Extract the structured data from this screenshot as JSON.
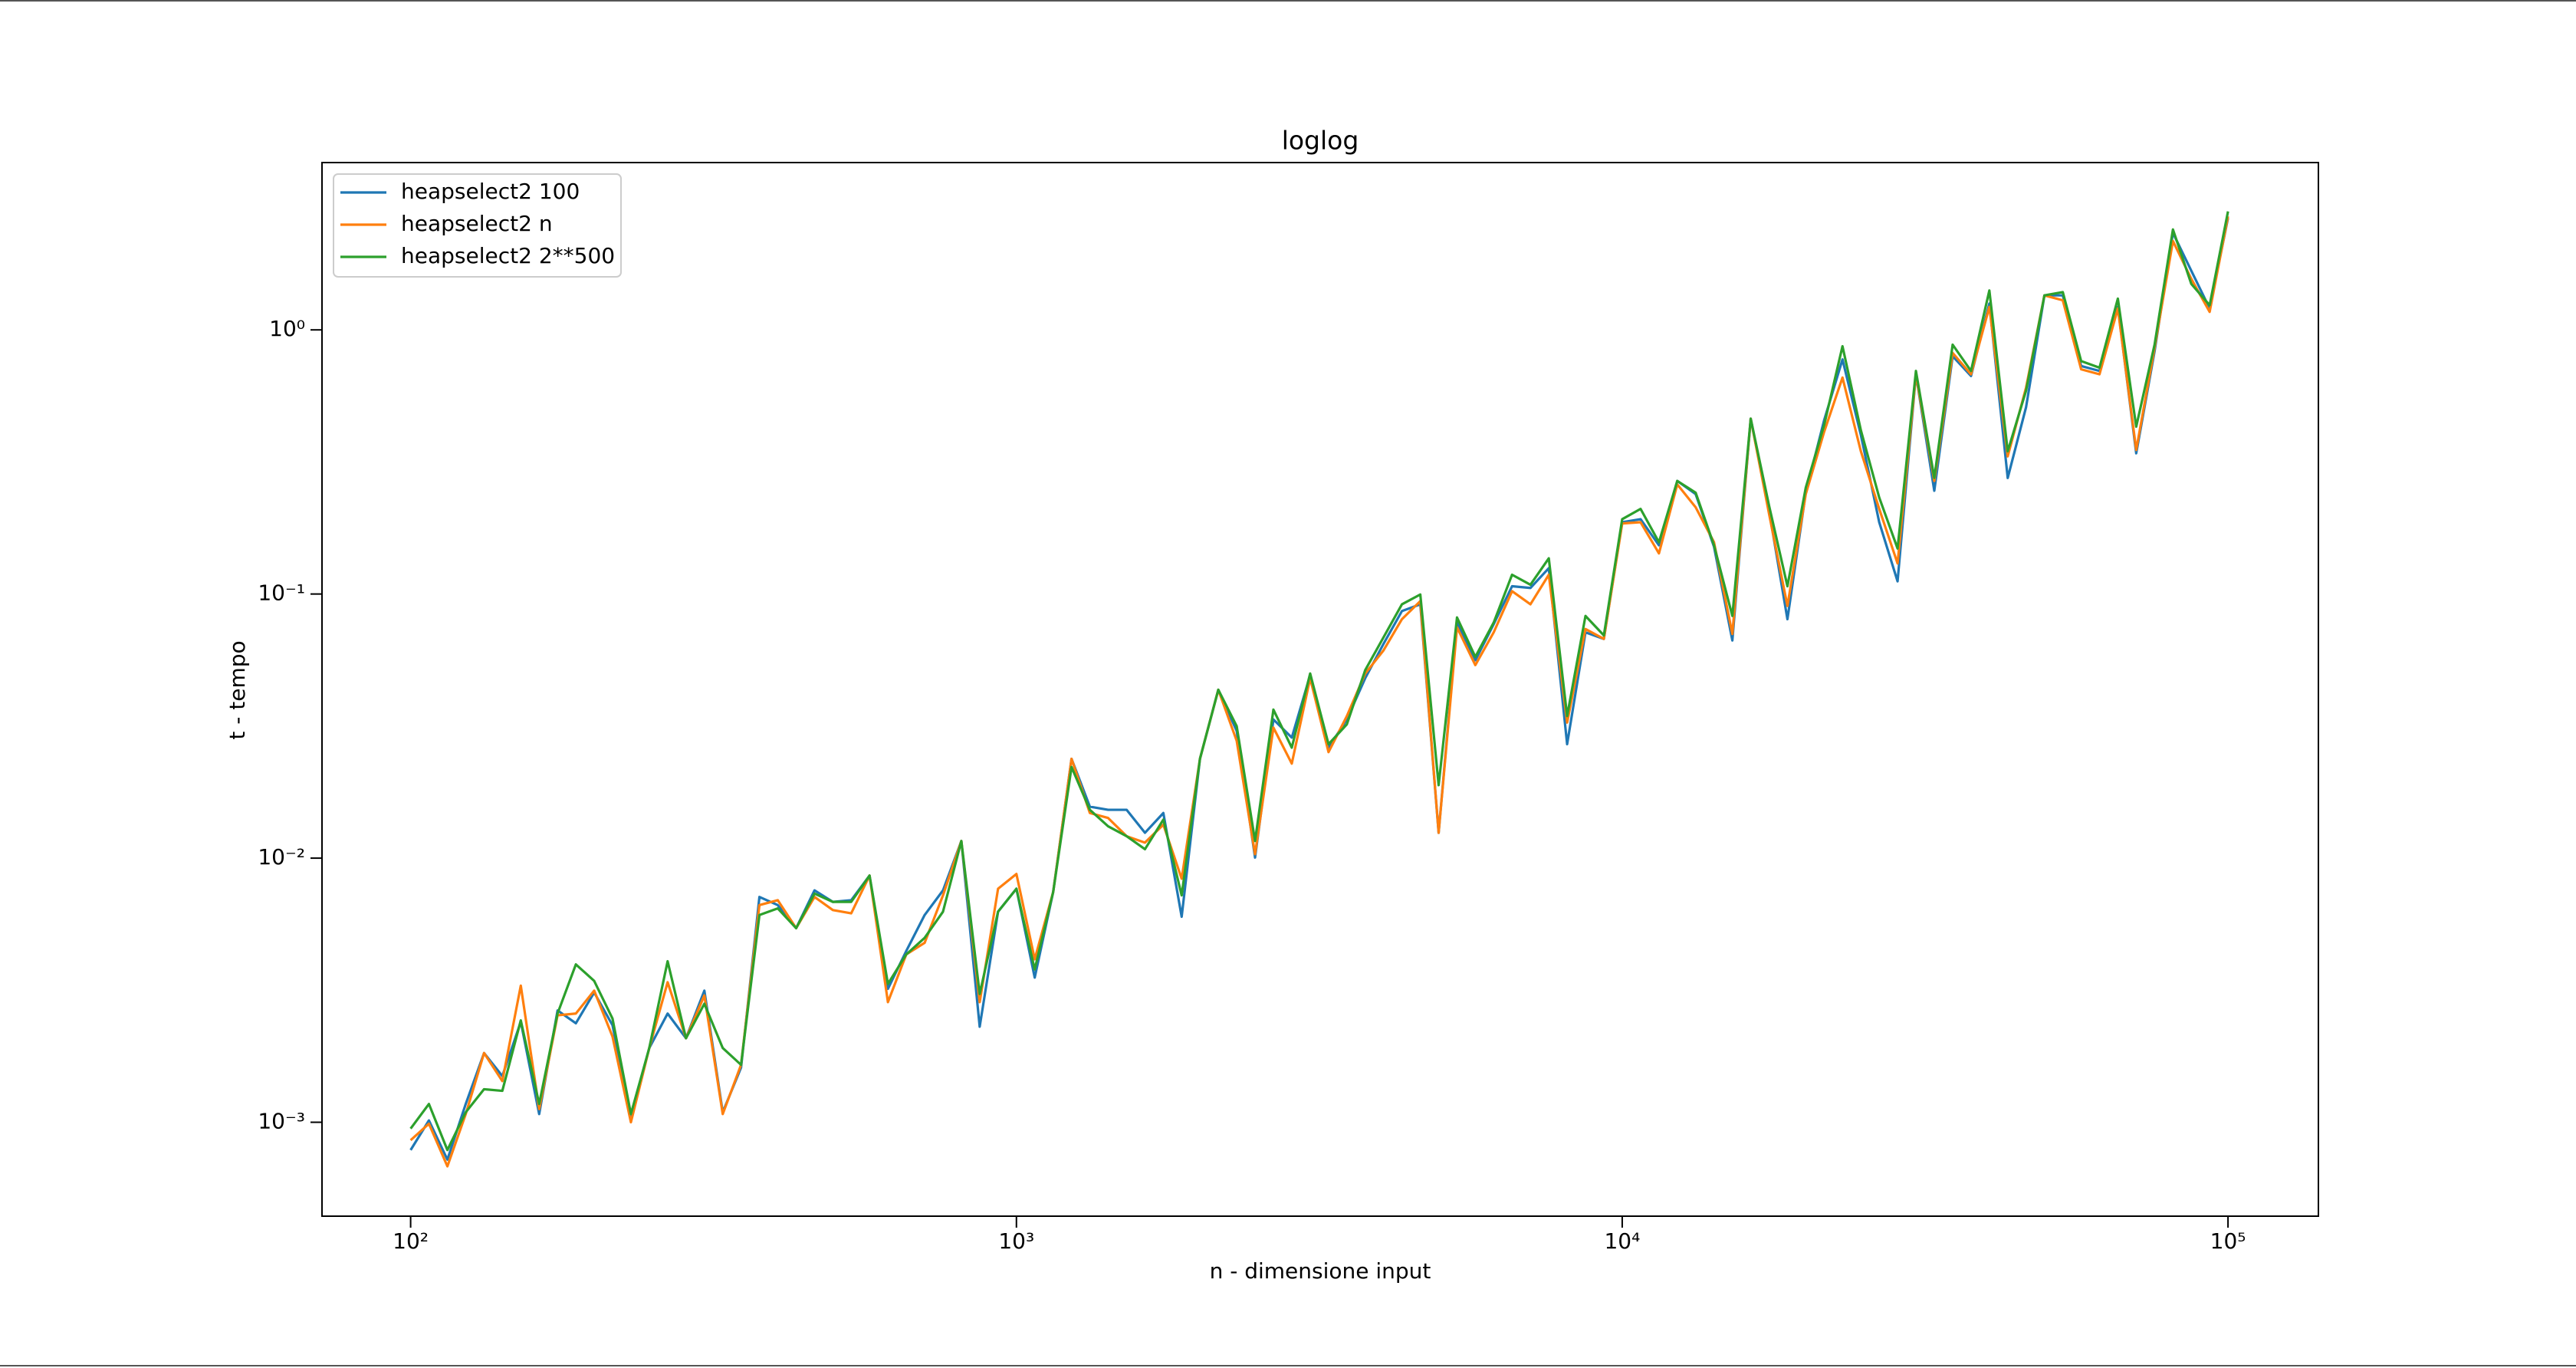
{
  "chart_data": {
    "type": "line",
    "title": "loglog",
    "xlabel": "n - dimensione input",
    "ylabel": "t - tempo",
    "xscale": "log",
    "yscale": "log",
    "grid": false,
    "legend": "upper left",
    "x": [
      100,
      107.2,
      115.0,
      123.3,
      132.2,
      141.7,
      152.0,
      163.0,
      174.8,
      187.4,
      200.9,
      215.4,
      231.0,
      247.7,
      265.6,
      284.8,
      305.4,
      327.5,
      351.1,
      376.5,
      403.7,
      432.9,
      464.2,
      497.7,
      533.7,
      572.2,
      613.6,
      657.9,
      705.5,
      756.5,
      811.1,
      869.7,
      932.6,
      1000,
      1072,
      1150,
      1233,
      1322,
      1417,
      1520,
      1630,
      1748,
      1874,
      2009,
      2154,
      2310,
      2477,
      2656,
      2848,
      3054,
      3275,
      3511,
      3765,
      4037,
      4329,
      4642,
      4977,
      5337,
      5722,
      6136,
      6579,
      7055,
      7565,
      8111,
      8697,
      9326,
      10000,
      10723,
      11498,
      12328,
      13219,
      14175,
      15199,
      16298,
      17475,
      18738,
      20092,
      21544,
      23101,
      24771,
      26561,
      28480,
      30539,
      32745,
      35112,
      37649,
      40370,
      43288,
      46416,
      49770,
      53367,
      57224,
      61359,
      65793,
      70548,
      75646,
      81113,
      86975,
      93260,
      100000
    ],
    "series": [
      {
        "name": "heapselect2 100",
        "color": "#1f77b4",
        "values": [
          0.000785,
          0.001016,
          0.000722,
          0.001173,
          0.001828,
          0.001496,
          0.0024,
          0.001074,
          0.00265,
          0.00237,
          0.0031,
          0.00233,
          0.001045,
          0.00191,
          0.00258,
          0.00208,
          0.00315,
          0.001091,
          0.00161,
          0.00713,
          0.00664,
          0.00543,
          0.00755,
          0.00683,
          0.00693,
          0.00859,
          0.0032,
          0.00445,
          0.00609,
          0.00755,
          0.01161,
          0.0023,
          0.00627,
          0.00766,
          0.00353,
          0.00745,
          0.02377,
          0.01567,
          0.01524,
          0.01524,
          0.01247,
          0.01482,
          0.006,
          0.02377,
          0.0434,
          0.0303,
          0.01005,
          0.0335,
          0.0286,
          0.0493,
          0.0262,
          0.0335,
          0.048,
          0.0648,
          0.0862,
          0.0914,
          0.01247,
          0.078,
          0.0561,
          0.0769,
          0.107,
          0.1054,
          0.1253,
          0.027,
          0.0716,
          0.0676,
          0.187,
          0.192,
          0.153,
          0.268,
          0.239,
          0.151,
          0.0667,
          0.461,
          0.207,
          0.0803,
          0.242,
          0.455,
          0.773,
          0.4,
          0.187,
          0.1117,
          0.679,
          0.246,
          0.795,
          0.669,
          1.258,
          0.275,
          0.51,
          1.351,
          1.351,
          0.73,
          0.699,
          1.222,
          0.341,
          0.83,
          2.33,
          1.675,
          1.205,
          2.65
        ]
      },
      {
        "name": "heapselect2 n",
        "color": "#ff7f0e",
        "values": [
          0.000855,
          0.000987,
          0.000681,
          0.001074,
          0.001828,
          0.001432,
          0.00329,
          0.001122,
          0.00254,
          0.00258,
          0.00315,
          0.00211,
          0.001,
          0.00191,
          0.00339,
          0.00208,
          0.00302,
          0.001074,
          0.00165,
          0.00664,
          0.00693,
          0.00543,
          0.00713,
          0.00636,
          0.00618,
          0.00859,
          0.00285,
          0.00432,
          0.00478,
          0.00723,
          0.01161,
          0.00285,
          0.00766,
          0.00871,
          0.00414,
          0.00745,
          0.02377,
          0.01482,
          0.01419,
          0.01211,
          0.01145,
          0.01339,
          0.00836,
          0.02377,
          0.0434,
          0.0278,
          0.01035,
          0.0312,
          0.0228,
          0.048,
          0.0252,
          0.0345,
          0.05,
          0.0612,
          0.0803,
          0.094,
          0.01247,
          0.0748,
          0.0538,
          0.0716,
          0.1025,
          0.0914,
          0.1183,
          0.0326,
          0.0737,
          0.0676,
          0.185,
          0.187,
          0.1425,
          0.26,
          0.213,
          0.157,
          0.0706,
          0.461,
          0.201,
          0.0901,
          0.239,
          0.411,
          0.66,
          0.347,
          0.21,
          0.1306,
          0.679,
          0.268,
          0.818,
          0.679,
          1.222,
          0.332,
          0.605,
          1.351,
          1.294,
          0.709,
          0.679,
          1.205,
          0.351,
          0.855,
          2.17,
          1.56,
          1.17,
          2.69
        ]
      },
      {
        "name": "heapselect2 2**500",
        "color": "#2ca02c",
        "values": [
          0.000946,
          0.001173,
          0.000785,
          0.001091,
          0.001334,
          0.001315,
          0.00243,
          0.001173,
          0.00258,
          0.00396,
          0.00343,
          0.00247,
          0.001074,
          0.00191,
          0.00407,
          0.00208,
          0.00281,
          0.00191,
          0.00165,
          0.00609,
          0.00645,
          0.00543,
          0.00734,
          0.00683,
          0.00683,
          0.00859,
          0.00334,
          0.00432,
          0.00499,
          0.00627,
          0.01161,
          0.00306,
          0.00627,
          0.00766,
          0.00379,
          0.00745,
          0.02213,
          0.01524,
          0.0132,
          0.01211,
          0.01081,
          0.01399,
          0.00723,
          0.02377,
          0.0434,
          0.0316,
          0.01161,
          0.0365,
          0.0262,
          0.05,
          0.027,
          0.0321,
          0.0515,
          0.0686,
          0.0914,
          0.0996,
          0.01889,
          0.0815,
          0.0578,
          0.078,
          0.1183,
          0.1084,
          0.1365,
          0.0345,
          0.0826,
          0.0697,
          0.192,
          0.21,
          0.157,
          0.268,
          0.242,
          0.153,
          0.0826,
          0.461,
          0.216,
          0.107,
          0.253,
          0.436,
          0.867,
          0.417,
          0.232,
          0.1487,
          0.699,
          0.275,
          0.879,
          0.699,
          1.41,
          0.347,
          0.589,
          1.351,
          1.39,
          0.762,
          0.719,
          1.313,
          0.43,
          0.879,
          2.4,
          1.493,
          1.24,
          2.81
        ]
      }
    ],
    "xlim": [
      71.4,
      141000
    ],
    "ylim": [
      0.000441,
      4.3
    ],
    "xticks": [
      {
        "value": 100,
        "label": "10²"
      },
      {
        "value": 1000,
        "label": "10³"
      },
      {
        "value": 10000,
        "label": "10⁴"
      },
      {
        "value": 100000,
        "label": "10⁵"
      }
    ],
    "yticks": [
      {
        "value": 0.001,
        "label": "10⁻³"
      },
      {
        "value": 0.01,
        "label": "10⁻²"
      },
      {
        "value": 0.1,
        "label": "10⁻¹"
      },
      {
        "value": 1,
        "label": "10⁰"
      }
    ]
  }
}
